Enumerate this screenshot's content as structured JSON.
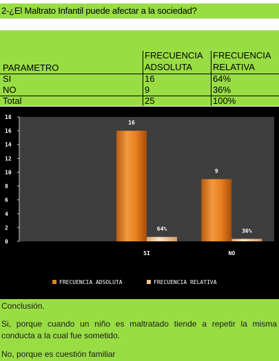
{
  "question": "2-¿El Maltrato Infantil  puede afectar a la sociedad?",
  "table": {
    "headers": {
      "param": "PARAMETRO",
      "abs_line1": "FRECUENCIA",
      "abs_line2": "ADSOLUTA",
      "rel_line1": "FRECUENCIA",
      "rel_line2": "RELATIVA"
    },
    "rows": [
      {
        "param": "SI",
        "abs": "16",
        "rel": "64%"
      },
      {
        "param": "NO",
        "abs": "9",
        "rel": "36%"
      },
      {
        "param": "Total",
        "abs": "25",
        "rel": "100%"
      }
    ]
  },
  "chart_data": {
    "type": "bar",
    "categories": [
      "",
      "SI",
      "NO"
    ],
    "series": [
      {
        "name": "FRECUENCIA ADSOLUTA",
        "values": [
          null,
          16,
          9
        ],
        "labels": [
          "",
          "16",
          "9"
        ],
        "color": "#e8801e"
      },
      {
        "name": "FRECUENCIA RELATIVA",
        "values": [
          null,
          0.64,
          0.36
        ],
        "labels": [
          "",
          "64%",
          "36%"
        ],
        "color": "#f7c48e"
      }
    ],
    "ylim": [
      0,
      18
    ],
    "yticks": [
      0,
      2,
      4,
      6,
      8,
      10,
      12,
      14,
      16,
      18
    ],
    "title": "",
    "xlabel": "",
    "ylabel": "",
    "legend": "bottom",
    "grid": false,
    "background": "#000000",
    "plot_background": "#3d3d3d",
    "text_color": "#ffffff"
  },
  "conclusion": {
    "heading": "Conclusión.",
    "yes_text": "Si, porque cuando un niño es maltratado tiende a repetir la misma conducta a la cual fue sometido.",
    "no_text": "No, porque es cuestión familiar"
  }
}
